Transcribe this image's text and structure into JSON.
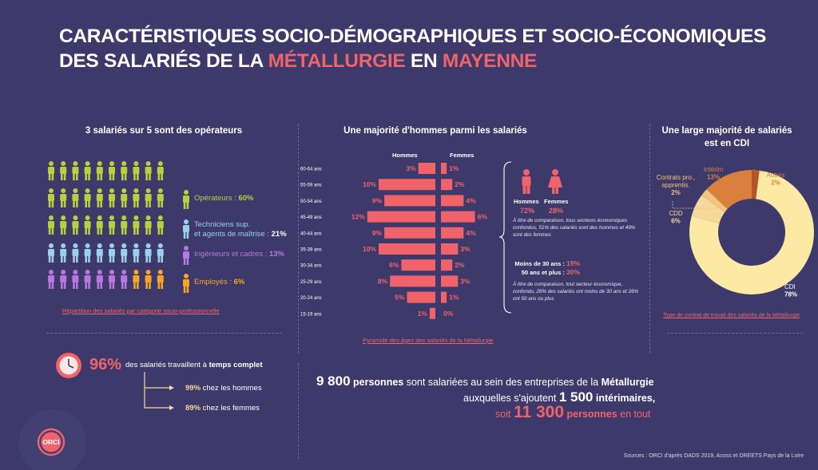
{
  "title": {
    "line1": "CARACTÉRISTIQUES SOCIO-DÉMOGRAPHIQUES ET SOCIO-ÉCONOMIQUES",
    "line2_prefix": "DES SALARIÉS DE LA ",
    "line2_accent1": "MÉTALLURGIE",
    "line2_mid": " EN ",
    "line2_accent2": "MAYENNE"
  },
  "colors": {
    "background": "#3d3a6b",
    "accent": "#f0636b",
    "operateurs": "#b9cf3e",
    "techniciens": "#9ad0e8",
    "ingenieurs": "#b877e0",
    "employes": "#f5a623",
    "cdi": "#fce9a4",
    "cdd": "#f5d89a",
    "contrats_pro": "#f3c27c",
    "interim": "#d9803f",
    "autres": "#b5522a"
  },
  "section1": {
    "heading": "3 salariés sur 5 sont des opérateurs",
    "legend": [
      {
        "label": "Opérateurs : ",
        "value": "60%",
        "color": "#b9cf3e",
        "icon": "person-icon"
      },
      {
        "label_line1": "Techniciens sup.",
        "label_line2": "et agents de maîtrise : ",
        "value": "21%",
        "color": "#9ad0e8",
        "icon": "person-icon"
      },
      {
        "label": "Ingénieurs et cadres : ",
        "value": "13%",
        "color": "#b877e0",
        "icon": "person-icon"
      },
      {
        "label": "Employés : ",
        "value": "6%",
        "color": "#f5a623",
        "icon": "person-icon"
      }
    ],
    "caption": "Répartition des salariés par catégorie socio-professionnelle"
  },
  "section2": {
    "heading": "Une majorité d'hommes parmi les salariés",
    "caption": "Pyramide des âges des salariés de la Métallurgie",
    "gender_men_label": "Hommes",
    "gender_women_label": "Femmes",
    "gender_men_value": "72%",
    "gender_women_value": "28%",
    "note1": "À titre de comparaison, tous secteurs économiques confondus, 51% des salariés sont des hommes et 49% sont des femmes",
    "age_line1_label": "Moins de 30 ans : ",
    "age_line1_value": "19%",
    "age_line2_label": "50 ans et plus : ",
    "age_line2_value": "30%",
    "note2": "À titre de comparaison, tout secteur économique, confondu, 26% des salariés ont moins de 30 ans et 26% ont 50 ans ou plus"
  },
  "section3": {
    "heading_line1": "Une large majorité de salariés",
    "heading_line2": "est en CDI",
    "caption": "Type de contrat de travail des salariés de la Métallurgie"
  },
  "fulltime": {
    "pct": "96%",
    "text_prefix": "des salariés travaillent à ",
    "text_bold": "temps complet",
    "men_value": "99%",
    "men_label": " chez les hommes",
    "women_value": "89%",
    "women_label": " chez les femmes"
  },
  "totals": {
    "line1_num": "9 800",
    "line1_bold": " personnes",
    "line1_mid": " sont salariées au sein des entreprises de la ",
    "line1_end": "Métallurgie",
    "line2_start": "auxquelles s'ajoutent ",
    "line2_num": "1 500",
    "line2_bold": " intérimaires,",
    "line3_start": "soit ",
    "line3_num": "11 300",
    "line3_bold": " personnes",
    "line3_end": " en tout"
  },
  "logo_text": "ORCI",
  "source": "Sources : ORCI d'après DADS 2019, Acoss et DREETS Pays de la Loire",
  "chart_data": [
    {
      "type": "bar",
      "title": "Pyramide des âges des salariés de la Métallurgie",
      "categories": [
        "60-64 ans",
        "55-59 ans",
        "50-54 ans",
        "45-49 ans",
        "40-44 ans",
        "35-39 ans",
        "30-34 ans",
        "25-29 ans",
        "20-24 ans",
        "15-19 ans"
      ],
      "series": [
        {
          "name": "Hommes",
          "values": [
            3,
            10,
            9,
            12,
            9,
            10,
            6,
            8,
            5,
            1
          ],
          "color": "#f0636b"
        },
        {
          "name": "Femmes",
          "values": [
            1,
            2,
            4,
            6,
            4,
            3,
            2,
            3,
            1,
            0
          ],
          "color": "#f0636b"
        }
      ],
      "value_suffix": "%"
    },
    {
      "type": "pie",
      "title": "Type de contrat de travail des salariés de la Métallurgie",
      "slices": [
        {
          "label": "CDI",
          "value": 78,
          "color": "#fce9a4"
        },
        {
          "label": "CDD",
          "value": 6,
          "color": "#f5d89a"
        },
        {
          "label": "Contrats pro., apprentis.",
          "value": 2,
          "color": "#f3c27c"
        },
        {
          "label": "Intérim",
          "value": 13,
          "color": "#d9803f"
        },
        {
          "label": "Autres",
          "value": 2,
          "color": "#b5522a"
        }
      ]
    },
    {
      "type": "table",
      "title": "Répartition des salariés par catégorie socio-professionnelle",
      "rows": [
        {
          "category": "Opérateurs",
          "value": 60
        },
        {
          "category": "Techniciens sup. et agents de maîtrise",
          "value": 21
        },
        {
          "category": "Ingénieurs et cadres",
          "value": 13
        },
        {
          "category": "Employés",
          "value": 6
        }
      ],
      "unit": "%"
    }
  ]
}
